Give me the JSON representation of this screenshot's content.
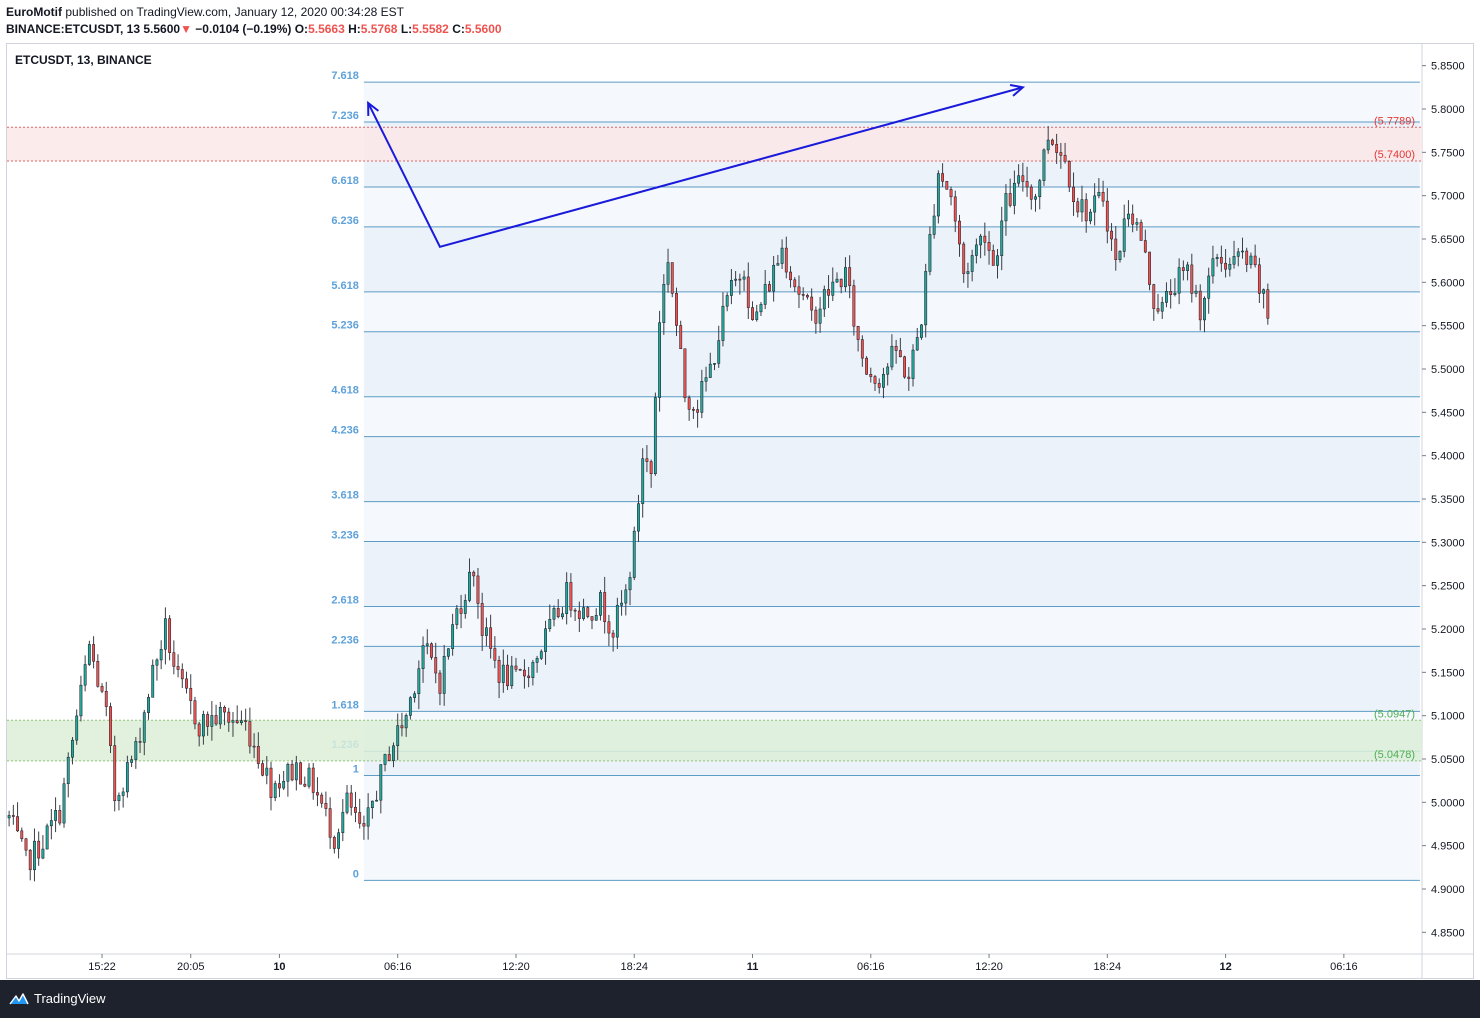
{
  "header": {
    "author": "EuroMotif",
    "published_text": "published on TradingView.com, January 12, 2020 00:34:28 EST",
    "symbol_line": "BINANCE:ETCUSDT, 13",
    "price": "5.5600",
    "change_arrow": "▼",
    "change": "−0.0104 (−0.19%)",
    "o_label": "O:",
    "o": "5.5663",
    "h_label": "H:",
    "h": "5.5768",
    "l_label": "L:",
    "l": "5.5582",
    "c_label": "C:",
    "c": "5.5600"
  },
  "symbol_label": "ETCUSDT, 13, BINANCE",
  "footer": {
    "brand": "TradingView"
  },
  "colors": {
    "up": "#26a69a",
    "down": "#ef5350",
    "candle_border": "#131722",
    "fib_line": "#5d9cc4",
    "fib_text": "#5ea1da",
    "arrow": "#1a1adb",
    "red_zone": "#f0b2b2",
    "green_zone": "#b9e0b5"
  },
  "chart_data": {
    "type": "candlestick",
    "ylim": [
      4.825,
      5.875
    ],
    "y_ticks": [
      "5.8500",
      "5.8000",
      "5.7500",
      "5.7000",
      "5.6500",
      "5.6000",
      "5.5500",
      "5.5000",
      "5.4500",
      "5.4000",
      "5.3500",
      "5.3000",
      "5.2500",
      "5.2000",
      "5.1500",
      "5.1000",
      "5.0500",
      "5.0000",
      "4.9500",
      "4.9000",
      "4.8500"
    ],
    "x_ticks": [
      {
        "label": "15:22",
        "bar": 22
      },
      {
        "label": "20:05",
        "bar": 43
      },
      {
        "label": "10",
        "bar": 64
      },
      {
        "label": "06:16",
        "bar": 92
      },
      {
        "label": "12:20",
        "bar": 120
      },
      {
        "label": "18:24",
        "bar": 148
      },
      {
        "label": "11",
        "bar": 176
      },
      {
        "label": "06:16",
        "bar": 204
      },
      {
        "label": "12:20",
        "bar": 232
      },
      {
        "label": "18:24",
        "bar": 260
      },
      {
        "label": "12",
        "bar": 288
      },
      {
        "label": "06:16",
        "bar": 316
      }
    ],
    "bar_count_visible": 335,
    "fibonacci": {
      "start_bar": 84,
      "end_bar": 334,
      "levels": [
        {
          "ratio": "0",
          "price": 4.91
        },
        {
          "ratio": "1",
          "price": 5.031
        },
        {
          "ratio": "1.236",
          "price": 5.059
        },
        {
          "ratio": "1.618",
          "price": 5.105
        },
        {
          "ratio": "2.236",
          "price": 5.18
        },
        {
          "ratio": "2.618",
          "price": 5.226
        },
        {
          "ratio": "3.236",
          "price": 5.301
        },
        {
          "ratio": "3.618",
          "price": 5.347
        },
        {
          "ratio": "4.236",
          "price": 5.422
        },
        {
          "ratio": "4.618",
          "price": 5.468
        },
        {
          "ratio": "5.236",
          "price": 5.543
        },
        {
          "ratio": "5.618",
          "price": 5.589
        },
        {
          "ratio": "6.236",
          "price": 5.664
        },
        {
          "ratio": "6.618",
          "price": 5.71
        },
        {
          "ratio": "7.236",
          "price": 5.785
        },
        {
          "ratio": "7.618",
          "price": 5.831
        }
      ]
    },
    "zones": [
      {
        "name": "resistance",
        "top": 5.7789,
        "bottom": 5.74,
        "top_label": "(5.7789)",
        "bottom_label": "(5.7400)"
      },
      {
        "name": "support",
        "top": 5.0947,
        "bottom": 5.0478,
        "top_label": "(5.0947)",
        "bottom_label": "(5.0478)"
      }
    ],
    "arrow_path": [
      {
        "bar": 85,
        "price": 5.807
      },
      {
        "bar": 102,
        "price": 5.641
      },
      {
        "bar": 240,
        "price": 5.825
      }
    ],
    "price_keypoints": [
      [
        0,
        4.982
      ],
      [
        4,
        4.93
      ],
      [
        8,
        4.955
      ],
      [
        12,
        4.99
      ],
      [
        15,
        5.07
      ],
      [
        19,
        5.18
      ],
      [
        23,
        5.1
      ],
      [
        25,
        5.005
      ],
      [
        30,
        5.06
      ],
      [
        34,
        5.15
      ],
      [
        37,
        5.2
      ],
      [
        40,
        5.14
      ],
      [
        45,
        5.09
      ],
      [
        50,
        5.1
      ],
      [
        56,
        5.09
      ],
      [
        62,
        5.02
      ],
      [
        68,
        5.04
      ],
      [
        72,
        5.02
      ],
      [
        77,
        4.96
      ],
      [
        80,
        5.0
      ],
      [
        84,
        4.96
      ],
      [
        86,
        5.0
      ],
      [
        90,
        5.06
      ],
      [
        94,
        5.1
      ],
      [
        98,
        5.18
      ],
      [
        102,
        5.14
      ],
      [
        106,
        5.22
      ],
      [
        110,
        5.27
      ],
      [
        112,
        5.2
      ],
      [
        116,
        5.15
      ],
      [
        120,
        5.14
      ],
      [
        124,
        5.16
      ],
      [
        128,
        5.2
      ],
      [
        132,
        5.24
      ],
      [
        136,
        5.22
      ],
      [
        140,
        5.23
      ],
      [
        143,
        5.2
      ],
      [
        146,
        5.24
      ],
      [
        148,
        5.3
      ],
      [
        150,
        5.4
      ],
      [
        152,
        5.38
      ],
      [
        154,
        5.56
      ],
      [
        156,
        5.63
      ],
      [
        158,
        5.55
      ],
      [
        160,
        5.47
      ],
      [
        163,
        5.46
      ],
      [
        166,
        5.5
      ],
      [
        170,
        5.58
      ],
      [
        174,
        5.62
      ],
      [
        176,
        5.55
      ],
      [
        180,
        5.6
      ],
      [
        183,
        5.64
      ],
      [
        186,
        5.6
      ],
      [
        190,
        5.56
      ],
      [
        194,
        5.59
      ],
      [
        198,
        5.61
      ],
      [
        201,
        5.53
      ],
      [
        203,
        5.5
      ],
      [
        206,
        5.49
      ],
      [
        210,
        5.52
      ],
      [
        213,
        5.49
      ],
      [
        216,
        5.56
      ],
      [
        218,
        5.65
      ],
      [
        220,
        5.73
      ],
      [
        223,
        5.7
      ],
      [
        226,
        5.61
      ],
      [
        229,
        5.64
      ],
      [
        231,
        5.66
      ],
      [
        233,
        5.62
      ],
      [
        236,
        5.69
      ],
      [
        240,
        5.72
      ],
      [
        243,
        5.7
      ],
      [
        246,
        5.77
      ],
      [
        248,
        5.76
      ],
      [
        250,
        5.74
      ],
      [
        253,
        5.69
      ],
      [
        256,
        5.68
      ],
      [
        259,
        5.7
      ],
      [
        262,
        5.62
      ],
      [
        265,
        5.69
      ],
      [
        268,
        5.65
      ],
      [
        271,
        5.58
      ],
      [
        273,
        5.57
      ],
      [
        276,
        5.6
      ],
      [
        279,
        5.61
      ],
      [
        282,
        5.57
      ],
      [
        286,
        5.63
      ],
      [
        289,
        5.62
      ],
      [
        292,
        5.63
      ],
      [
        295,
        5.61
      ],
      [
        298,
        5.56
      ]
    ]
  }
}
